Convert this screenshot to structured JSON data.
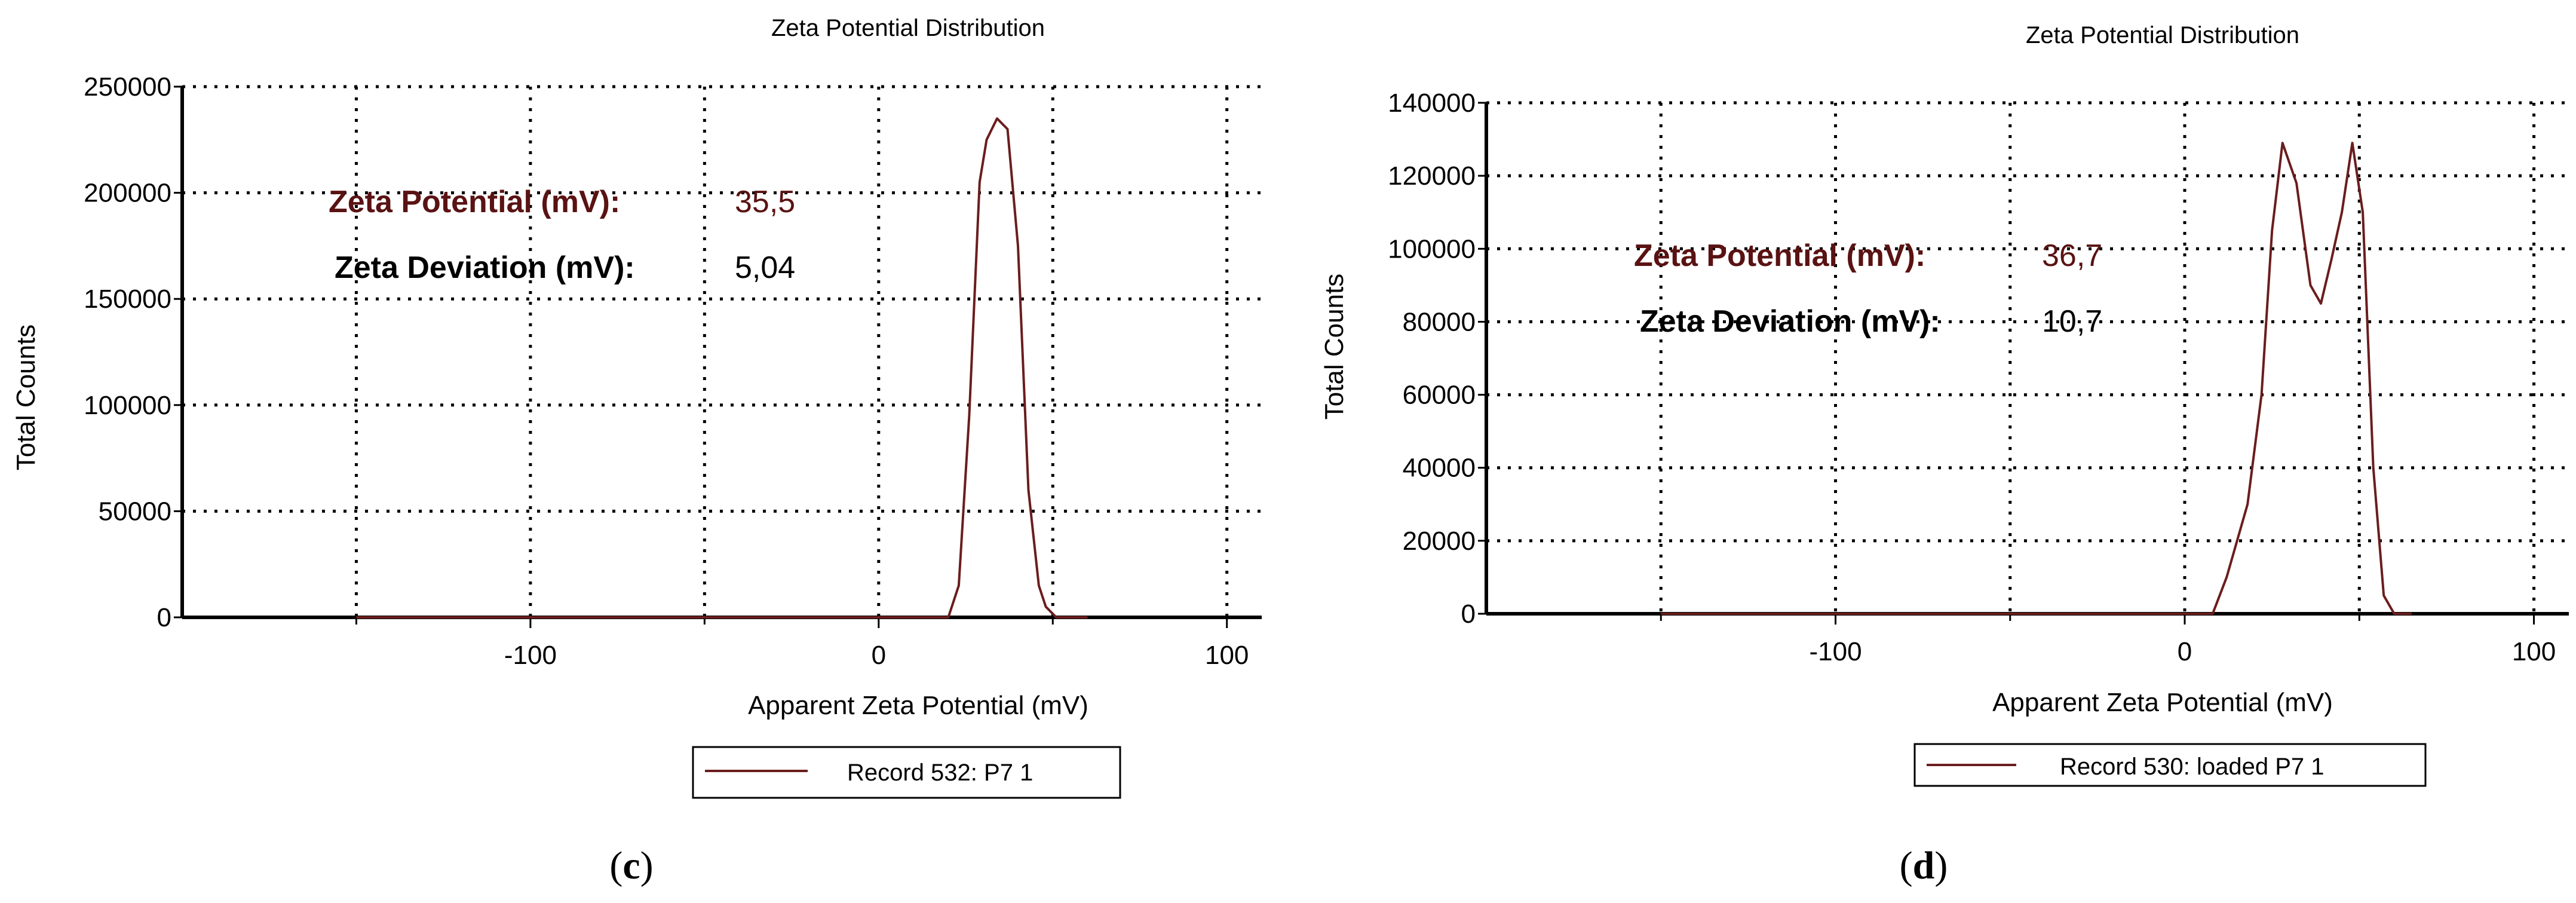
{
  "colors": {
    "series": "#6b1d1d",
    "potential_label": "#5a1212",
    "text": "#000000"
  },
  "charts": [
    {
      "panel_caption": {
        "open": "(",
        "letter": "c",
        "close": ")"
      },
      "zeta_potential": {
        "label": "Zeta Potential (mV):",
        "value": "35,5"
      },
      "zeta_deviation": {
        "label": "Zeta Deviation (mV):",
        "value": "5,04"
      },
      "legend": "Record 532:  P7 1",
      "ytick_labels": [
        "0",
        "50000",
        "100000",
        "150000",
        "200000",
        "250000"
      ],
      "xtick_labels": [
        "-100",
        "0",
        "100"
      ]
    },
    {
      "panel_caption": {
        "open": "(",
        "letter": "d",
        "close": ")"
      },
      "zeta_potential": {
        "label": "Zeta Potential (mV):",
        "value": "36,7"
      },
      "zeta_deviation": {
        "label": "Zeta Deviation (mV):",
        "value": "10,7"
      },
      "legend": "Record 530: loaded P7 1",
      "ytick_labels": [
        "0",
        "20000",
        "40000",
        "60000",
        "80000",
        "100000",
        "120000",
        "140000"
      ],
      "xtick_labels": [
        "-100",
        "0",
        "100"
      ]
    }
  ],
  "chart_data": [
    {
      "type": "line",
      "title": "Zeta Potential Distribution",
      "xlabel": "Apparent Zeta Potential (mV)",
      "ylabel": "Total Counts",
      "xlim": [
        -200,
        110
      ],
      "ylim": [
        0,
        250000
      ],
      "xticks": [
        -100,
        0,
        100
      ],
      "yticks": [
        0,
        50000,
        100000,
        150000,
        200000,
        250000
      ],
      "grid": true,
      "series": [
        {
          "name": "Record 532:  P7 1",
          "x": [
            -150,
            20,
            23,
            26,
            29,
            31,
            34,
            37,
            40,
            43,
            46,
            48,
            51,
            55,
            60
          ],
          "y": [
            0,
            0,
            15000,
            95000,
            205000,
            225000,
            235000,
            230000,
            175000,
            60000,
            15000,
            5000,
            0,
            0,
            0
          ]
        }
      ]
    },
    {
      "type": "line",
      "title": "Zeta Potential Distribution",
      "xlabel": "Apparent Zeta Potential (mV)",
      "ylabel": "Total Counts",
      "xlim": [
        -200,
        110
      ],
      "ylim": [
        0,
        140000
      ],
      "xticks": [
        -100,
        0,
        100
      ],
      "yticks": [
        0,
        20000,
        40000,
        60000,
        80000,
        100000,
        120000,
        140000
      ],
      "grid": true,
      "series": [
        {
          "name": "Record 530: loaded P7 1",
          "x": [
            -150,
            8,
            12,
            18,
            22,
            25,
            28,
            32,
            36,
            39,
            42,
            45,
            48,
            51,
            54,
            57,
            60,
            65
          ],
          "y": [
            0,
            0,
            10000,
            30000,
            60000,
            105000,
            129000,
            118000,
            90000,
            85000,
            97000,
            110000,
            129000,
            110000,
            40000,
            5000,
            0,
            0
          ]
        }
      ]
    }
  ]
}
